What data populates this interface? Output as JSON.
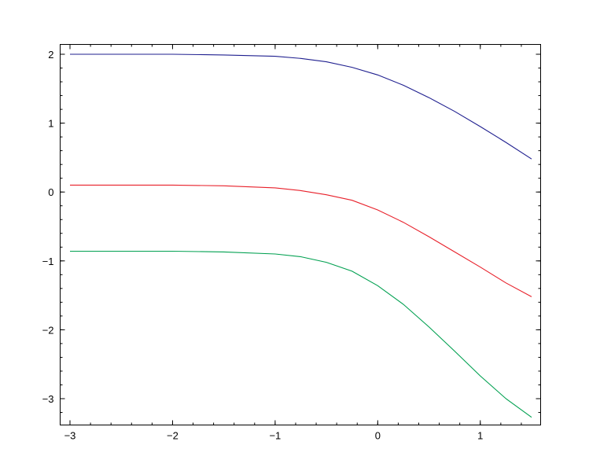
{
  "chart_data": {
    "type": "line",
    "title": "",
    "xlabel": "",
    "ylabel": "",
    "xlim": [
      -3,
      1.5
    ],
    "ylim": [
      -3.35,
      2.1
    ],
    "grid": false,
    "x_ticks": [
      -3,
      -2,
      -1,
      0,
      1
    ],
    "x_tick_labels": [
      "−3",
      "−2",
      "−1",
      "0",
      "1"
    ],
    "y_ticks": [
      2,
      1,
      0,
      -1,
      -2,
      -3
    ],
    "y_tick_labels": [
      "2",
      "1",
      "0",
      "−1",
      "−2",
      "−3"
    ],
    "x": [
      -3.0,
      -2.5,
      -2.0,
      -1.5,
      -1.0,
      -0.75,
      -0.5,
      -0.25,
      0.0,
      0.25,
      0.5,
      0.75,
      1.0,
      1.25,
      1.5
    ],
    "series": [
      {
        "color": "#1f1f8f",
        "values": [
          2.0,
          2.0,
          2.0,
          1.99,
          1.97,
          1.94,
          1.89,
          1.81,
          1.7,
          1.55,
          1.37,
          1.17,
          0.95,
          0.72,
          0.48
        ]
      },
      {
        "color": "#e8202a",
        "values": [
          0.1,
          0.1,
          0.1,
          0.09,
          0.06,
          0.02,
          -0.04,
          -0.12,
          -0.26,
          -0.44,
          -0.65,
          -0.87,
          -1.09,
          -1.32,
          -1.52
        ]
      },
      {
        "color": "#00a050",
        "values": [
          -0.86,
          -0.86,
          -0.86,
          -0.87,
          -0.9,
          -0.94,
          -1.02,
          -1.15,
          -1.36,
          -1.63,
          -1.96,
          -2.31,
          -2.67,
          -3.0,
          -3.27
        ]
      }
    ]
  }
}
